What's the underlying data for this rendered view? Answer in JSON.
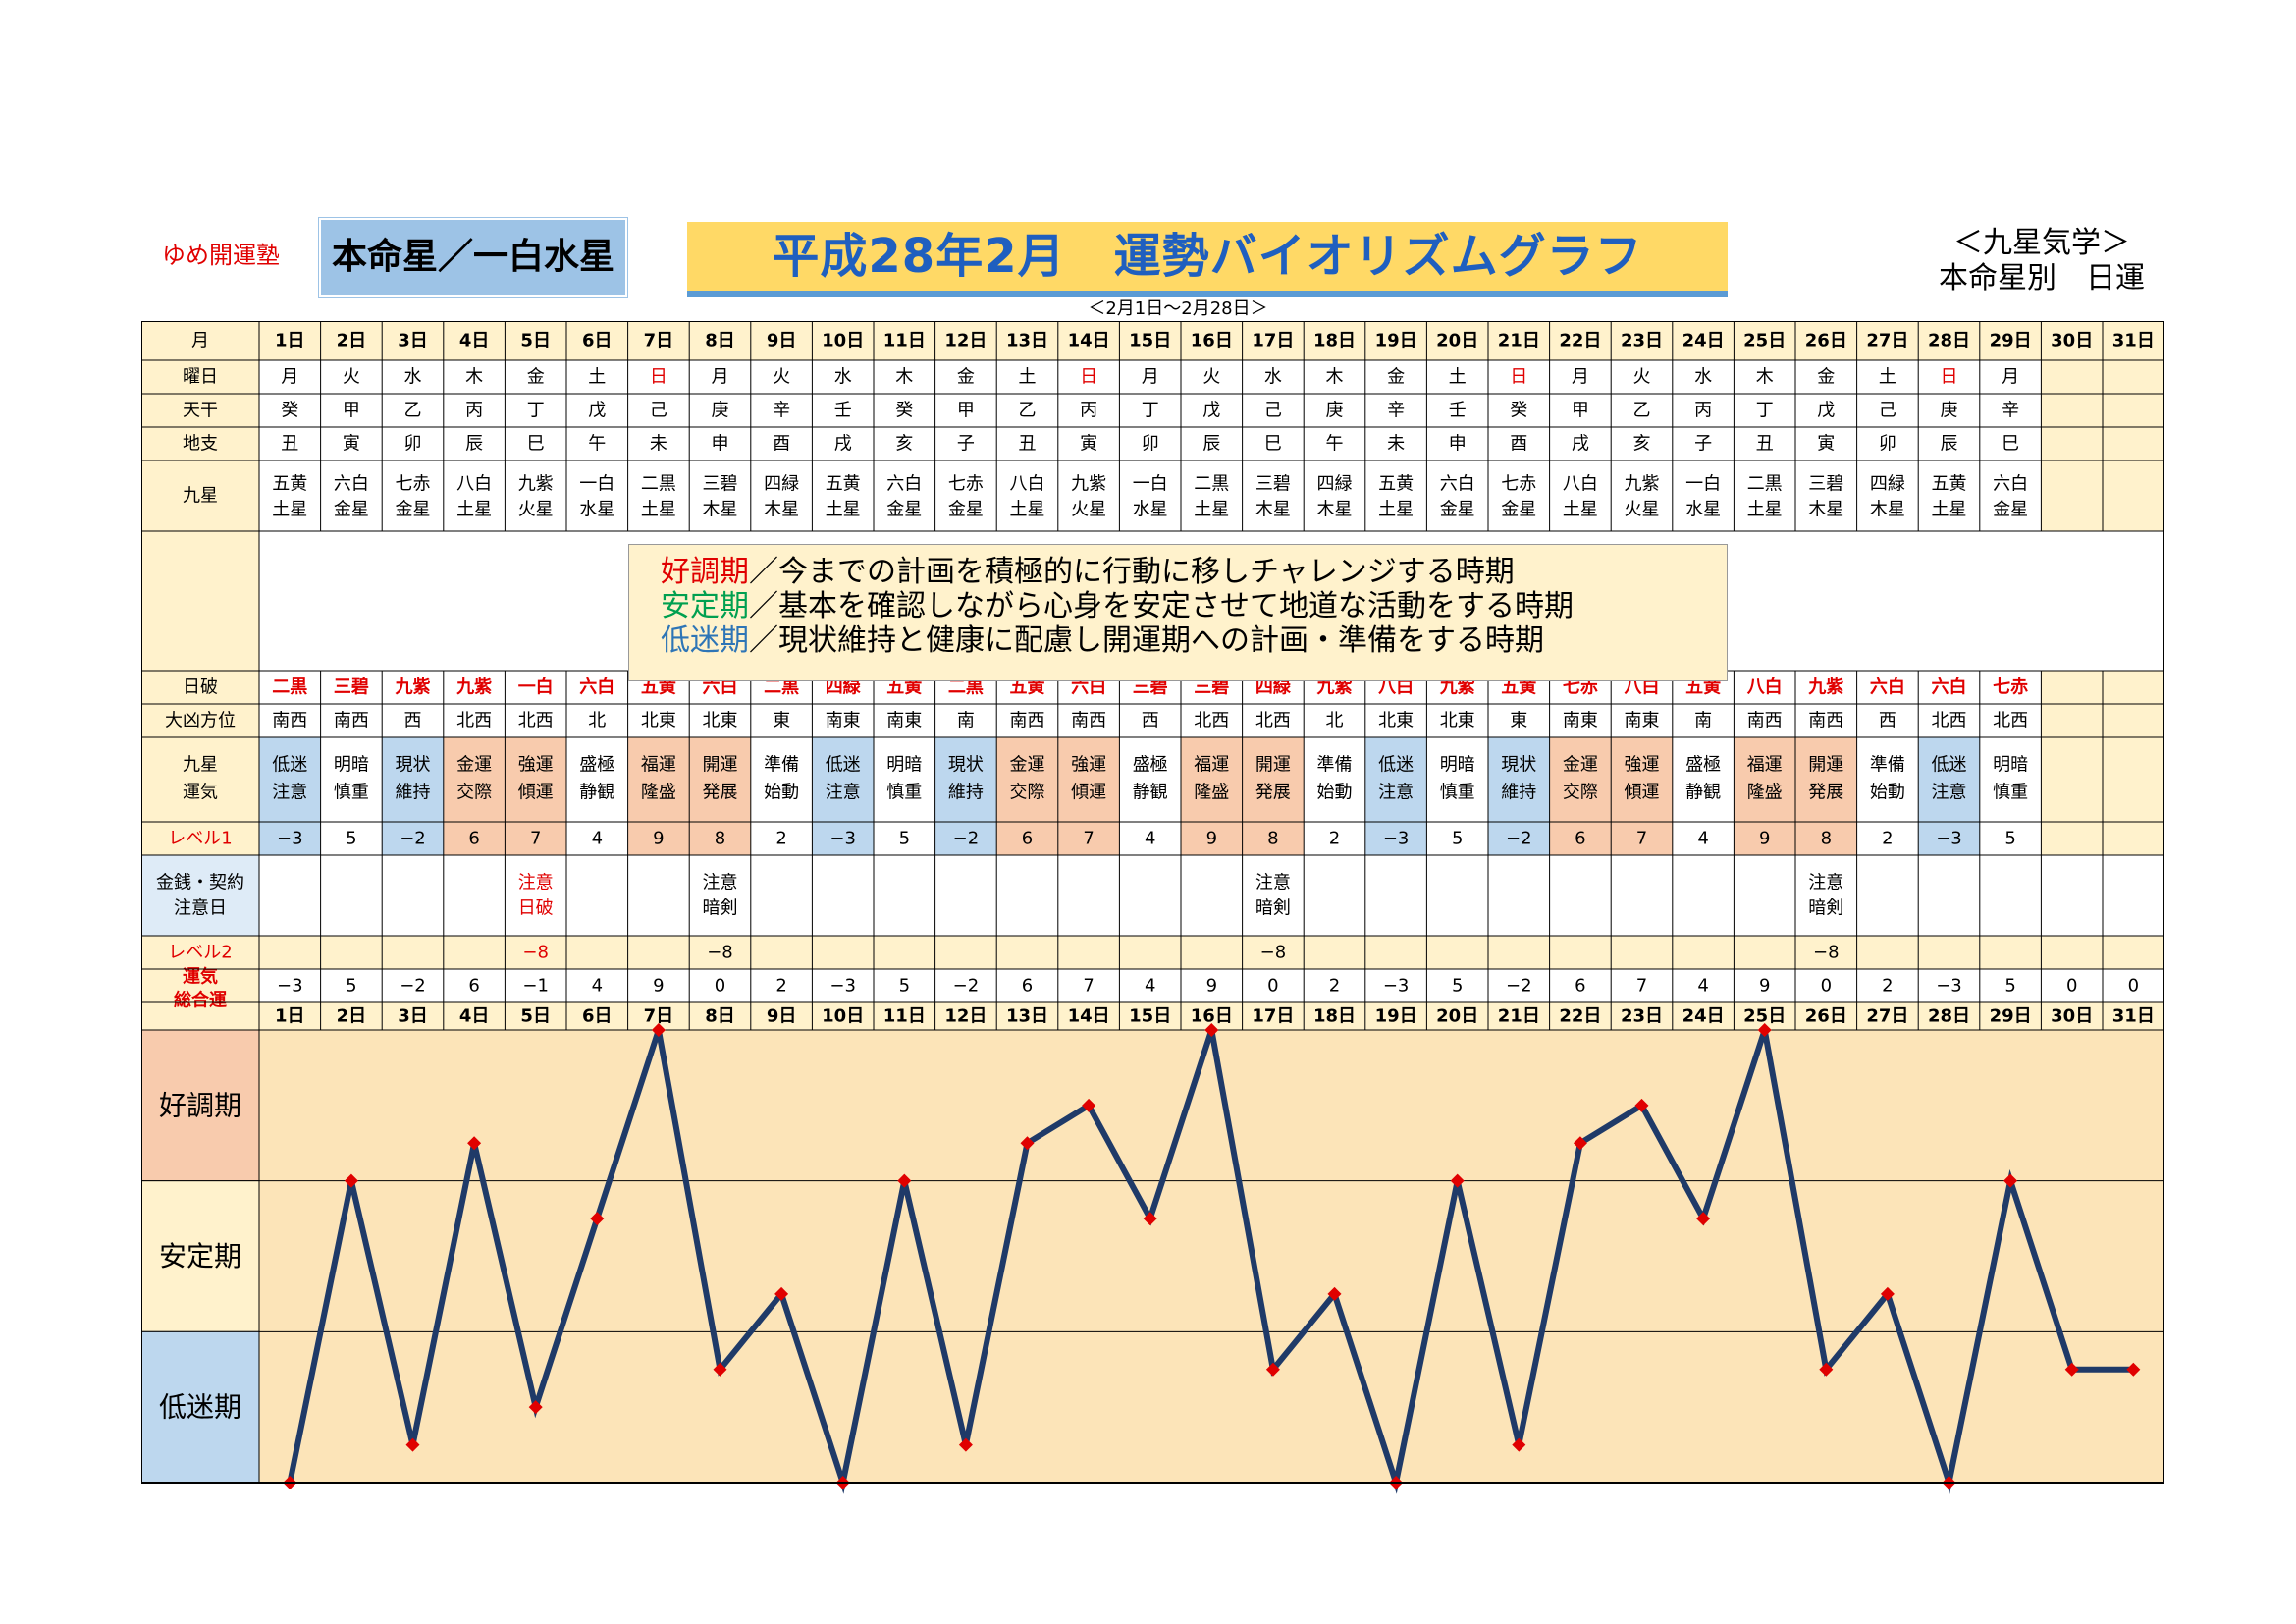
{
  "header": {
    "brand": "ゆめ開運塾",
    "honmei": "本命星／一白水星",
    "title": "平成28年2月　運勢バイオリズムグラフ",
    "subtitle_right_1": "＜九星気学＞",
    "subtitle_right_2": "本命星別　日運",
    "date_range": "＜2月1日～2月28日＞"
  },
  "row_labels": {
    "month": "月",
    "weekday": "曜日",
    "tenkan": "天干",
    "chishi": "地支",
    "kyusei": [
      "九星"
    ],
    "nippa": "日破",
    "daikyo": "大凶方位",
    "kyusei_unki": [
      "九星",
      "運気"
    ],
    "level1": "レベル1",
    "money": [
      "金銭・契約",
      "注意日"
    ],
    "level2": "レベル2",
    "total": [
      "運気",
      "総合運"
    ]
  },
  "legend": {
    "good_term": "好調期",
    "good_text": "／今までの計画を積極的に行動に移しチャレンジする時期",
    "stable_term": "安定期",
    "stable_text": "／基本を確認しながら心身を安定させて地道な活動をする時期",
    "low_term": "低迷期",
    "low_text": "／現状維持と健康に配慮し開運期への計画・準備をする時期"
  },
  "days": [
    "1日",
    "2日",
    "3日",
    "4日",
    "5日",
    "6日",
    "7日",
    "8日",
    "9日",
    "10日",
    "11日",
    "12日",
    "13日",
    "14日",
    "15日",
    "16日",
    "17日",
    "18日",
    "19日",
    "20日",
    "21日",
    "22日",
    "23日",
    "24日",
    "25日",
    "26日",
    "27日",
    "28日",
    "29日",
    "30日",
    "31日"
  ],
  "weekdays": [
    "月",
    "火",
    "水",
    "木",
    "金",
    "土",
    "日",
    "月",
    "火",
    "水",
    "木",
    "金",
    "土",
    "日",
    "月",
    "火",
    "水",
    "木",
    "金",
    "土",
    "日",
    "月",
    "火",
    "水",
    "木",
    "金",
    "土",
    "日",
    "月",
    "",
    ""
  ],
  "tenkan": [
    "癸",
    "甲",
    "乙",
    "丙",
    "丁",
    "戊",
    "己",
    "庚",
    "辛",
    "壬",
    "癸",
    "甲",
    "乙",
    "丙",
    "丁",
    "戊",
    "己",
    "庚",
    "辛",
    "壬",
    "癸",
    "甲",
    "乙",
    "丙",
    "丁",
    "戊",
    "己",
    "庚",
    "辛",
    "",
    ""
  ],
  "chishi": [
    "丑",
    "寅",
    "卯",
    "辰",
    "巳",
    "午",
    "未",
    "申",
    "酉",
    "戌",
    "亥",
    "子",
    "丑",
    "寅",
    "卯",
    "辰",
    "巳",
    "午",
    "未",
    "申",
    "酉",
    "戌",
    "亥",
    "子",
    "丑",
    "寅",
    "卯",
    "辰",
    "巳",
    "",
    ""
  ],
  "kyusei": [
    [
      "五黄",
      "土星"
    ],
    [
      "六白",
      "金星"
    ],
    [
      "七赤",
      "金星"
    ],
    [
      "八白",
      "土星"
    ],
    [
      "九紫",
      "火星"
    ],
    [
      "一白",
      "水星"
    ],
    [
      "二黒",
      "土星"
    ],
    [
      "三碧",
      "木星"
    ],
    [
      "四緑",
      "木星"
    ],
    [
      "五黄",
      "土星"
    ],
    [
      "六白",
      "金星"
    ],
    [
      "七赤",
      "金星"
    ],
    [
      "八白",
      "土星"
    ],
    [
      "九紫",
      "火星"
    ],
    [
      "一白",
      "水星"
    ],
    [
      "二黒",
      "土星"
    ],
    [
      "三碧",
      "木星"
    ],
    [
      "四緑",
      "木星"
    ],
    [
      "五黄",
      "土星"
    ],
    [
      "六白",
      "金星"
    ],
    [
      "七赤",
      "金星"
    ],
    [
      "八白",
      "土星"
    ],
    [
      "九紫",
      "火星"
    ],
    [
      "一白",
      "水星"
    ],
    [
      "二黒",
      "土星"
    ],
    [
      "三碧",
      "木星"
    ],
    [
      "四緑",
      "木星"
    ],
    [
      "五黄",
      "土星"
    ],
    [
      "六白",
      "金星"
    ],
    [
      "",
      ""
    ],
    [
      "",
      ""
    ]
  ],
  "nippa": [
    "二黒",
    "三碧",
    "九紫",
    "九紫",
    "一白",
    "六白",
    "五黄",
    "六白",
    "二黒",
    "四緑",
    "五黄",
    "二黒",
    "五黄",
    "六白",
    "三碧",
    "三碧",
    "四緑",
    "九紫",
    "八白",
    "九紫",
    "五黄",
    "七赤",
    "八白",
    "五黄",
    "八白",
    "九紫",
    "六白",
    "六白",
    "七赤",
    "",
    ""
  ],
  "daikyo": [
    "南西",
    "南西",
    "西",
    "北西",
    "北西",
    "北",
    "北東",
    "北東",
    "東",
    "南東",
    "南東",
    "南",
    "南西",
    "南西",
    "西",
    "北西",
    "北西",
    "北",
    "北東",
    "北東",
    "東",
    "南東",
    "南東",
    "南",
    "南西",
    "南西",
    "西",
    "北西",
    "北西",
    "",
    ""
  ],
  "unki": [
    [
      "低迷",
      "注意"
    ],
    [
      "明暗",
      "慎重"
    ],
    [
      "現状",
      "維持"
    ],
    [
      "金運",
      "交際"
    ],
    [
      "強運",
      "傾運"
    ],
    [
      "盛極",
      "静観"
    ],
    [
      "福運",
      "隆盛"
    ],
    [
      "開運",
      "発展"
    ],
    [
      "準備",
      "始動"
    ],
    [
      "低迷",
      "注意"
    ],
    [
      "明暗",
      "慎重"
    ],
    [
      "現状",
      "維持"
    ],
    [
      "金運",
      "交際"
    ],
    [
      "強運",
      "傾運"
    ],
    [
      "盛極",
      "静観"
    ],
    [
      "福運",
      "隆盛"
    ],
    [
      "開運",
      "発展"
    ],
    [
      "準備",
      "始動"
    ],
    [
      "低迷",
      "注意"
    ],
    [
      "明暗",
      "慎重"
    ],
    [
      "現状",
      "維持"
    ],
    [
      "金運",
      "交際"
    ],
    [
      "強運",
      "傾運"
    ],
    [
      "盛極",
      "静観"
    ],
    [
      "福運",
      "隆盛"
    ],
    [
      "開運",
      "発展"
    ],
    [
      "準備",
      "始動"
    ],
    [
      "低迷",
      "注意"
    ],
    [
      "明暗",
      "慎重"
    ],
    [
      "",
      ""
    ],
    [
      "",
      ""
    ]
  ],
  "level1": [
    "−3",
    "5",
    "−2",
    "6",
    "7",
    "4",
    "9",
    "8",
    "2",
    "−3",
    "5",
    "−2",
    "6",
    "7",
    "4",
    "9",
    "8",
    "2",
    "−3",
    "5",
    "−2",
    "6",
    "7",
    "4",
    "9",
    "8",
    "2",
    "−3",
    "5",
    "",
    ""
  ],
  "money": [
    [
      "",
      ""
    ],
    [
      "",
      ""
    ],
    [
      "",
      ""
    ],
    [
      "",
      ""
    ],
    [
      "注意",
      "日破"
    ],
    [
      "",
      ""
    ],
    [
      "",
      ""
    ],
    [
      "注意",
      "暗剣"
    ],
    [
      "",
      ""
    ],
    [
      "",
      ""
    ],
    [
      "",
      ""
    ],
    [
      "",
      ""
    ],
    [
      "",
      ""
    ],
    [
      "",
      ""
    ],
    [
      "",
      ""
    ],
    [
      "",
      ""
    ],
    [
      "注意",
      "暗剣"
    ],
    [
      "",
      ""
    ],
    [
      "",
      ""
    ],
    [
      "",
      ""
    ],
    [
      "",
      ""
    ],
    [
      "",
      ""
    ],
    [
      "",
      ""
    ],
    [
      "",
      ""
    ],
    [
      "",
      ""
    ],
    [
      "注意",
      "暗剣"
    ],
    [
      "",
      ""
    ],
    [
      "",
      ""
    ],
    [
      "",
      ""
    ],
    [
      "",
      ""
    ],
    [
      "",
      ""
    ]
  ],
  "level2": [
    "",
    "",
    "",
    "",
    "−8",
    "",
    "",
    "−8",
    "",
    "",
    "",
    "",
    "",
    "",
    "",
    "",
    "−8",
    "",
    "",
    "",
    "",
    "",
    "",
    "",
    "",
    "−8",
    "",
    "",
    "",
    "",
    ""
  ],
  "total": [
    "−3",
    "5",
    "−2",
    "6",
    "−1",
    "4",
    "9",
    "0",
    "2",
    "−3",
    "5",
    "−2",
    "6",
    "7",
    "4",
    "9",
    "0",
    "2",
    "−3",
    "5",
    "−2",
    "6",
    "7",
    "4",
    "9",
    "0",
    "2",
    "−3",
    "5",
    "0",
    "0"
  ],
  "chart_data": {
    "type": "line",
    "categories": [
      "1日",
      "2日",
      "3日",
      "4日",
      "5日",
      "6日",
      "7日",
      "8日",
      "9日",
      "10日",
      "11日",
      "12日",
      "13日",
      "14日",
      "15日",
      "16日",
      "17日",
      "18日",
      "19日",
      "20日",
      "21日",
      "22日",
      "23日",
      "24日",
      "25日",
      "26日",
      "27日",
      "28日",
      "29日",
      "30日",
      "31日"
    ],
    "values": [
      -3,
      5,
      -2,
      6,
      -1,
      4,
      9,
      0,
      2,
      -3,
      5,
      -2,
      6,
      7,
      4,
      9,
      0,
      2,
      -3,
      5,
      -2,
      6,
      7,
      4,
      9,
      0,
      2,
      -3,
      5,
      0,
      0
    ],
    "ylim": [
      -3,
      9
    ],
    "bands": [
      "好調期",
      "安定期",
      "低迷期"
    ],
    "line_color": "#1f3a68",
    "marker_color": "#e00000"
  },
  "colors": {
    "header_yellow": "#fff2cc",
    "chart_bg": "#fce4b8",
    "good_band": "#f8cbad",
    "stable_band": "#fff2cc",
    "low_band": "#bdd7ee",
    "unki_good": "#f8cbad",
    "unki_low": "#bdd7ee",
    "red": "#e00000"
  }
}
